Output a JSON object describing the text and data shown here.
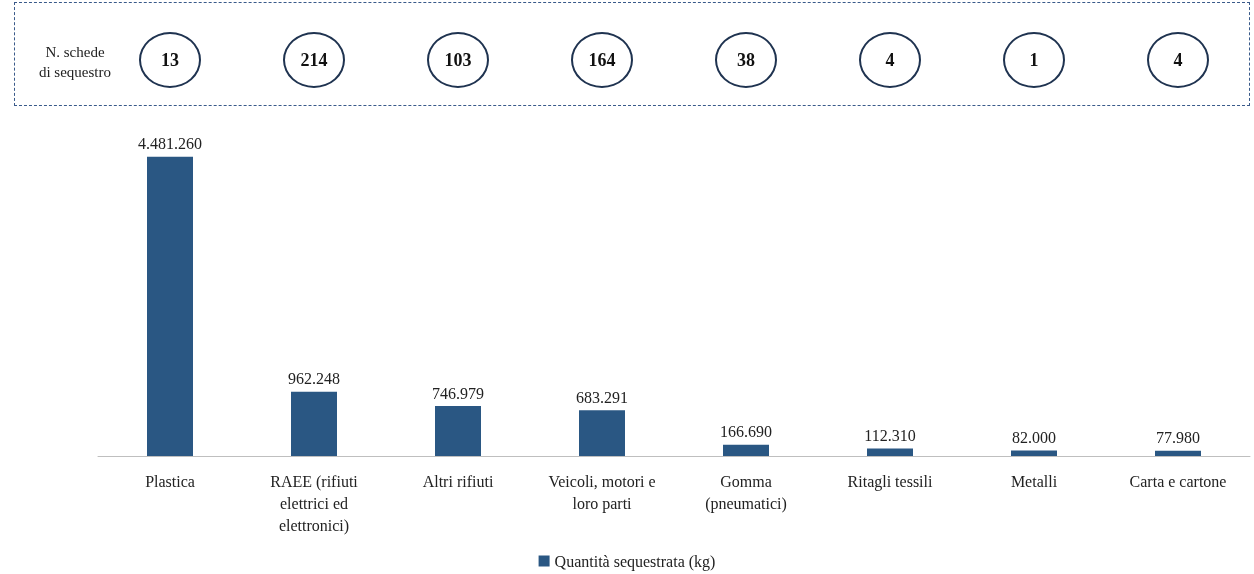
{
  "chart_data": {
    "type": "bar",
    "categories": [
      "Plastica",
      "RAEE (rifiuti\nelettrici ed\nelettronici)",
      "Altri rifiuti",
      "Veicoli, motori e\nloro parti",
      "Gomma\n(pneumatici)",
      "Ritagli tessili",
      "Metalli",
      "Carta e cartone"
    ],
    "series": [
      {
        "name": "Quantità sequestrata (kg)",
        "color": "#2a5783",
        "values": [
          4481260,
          962248,
          746979,
          683291,
          166690,
          112310,
          82000,
          77980
        ],
        "value_labels": [
          "4.481.260",
          "962.248",
          "746.979",
          "683.291",
          "166.690",
          "112.310",
          "82.000",
          "77.980"
        ]
      }
    ],
    "annotations": [
      "N. schede\ndi sequestro",
      "13",
      "214",
      "103",
      "164",
      "38",
      "4",
      "1",
      "4"
    ],
    "legend": "bottom",
    "grid": false
  }
}
